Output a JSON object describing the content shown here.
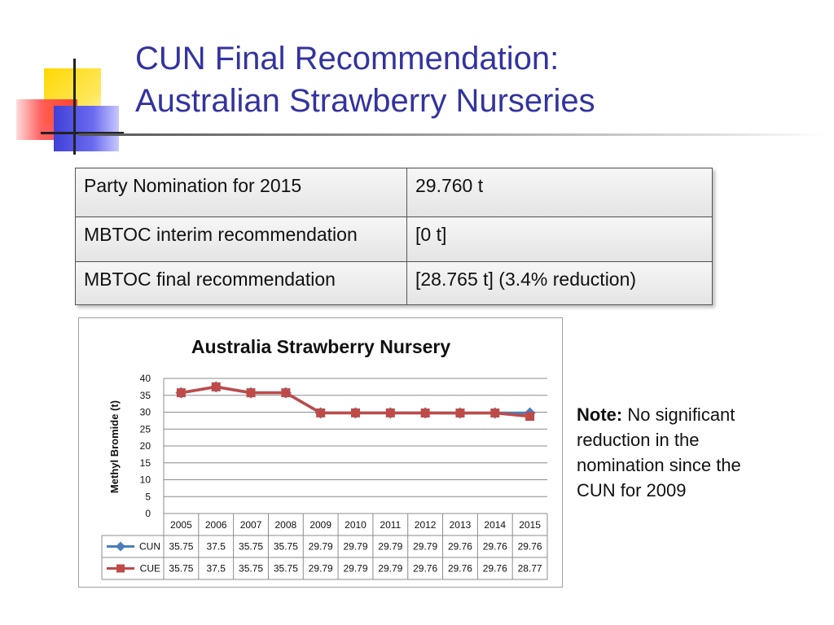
{
  "slide": {
    "title_line1": "CUN Final Recommendation:",
    "title_line2": "Australian Strawberry Nurseries"
  },
  "table": {
    "rows": [
      {
        "label": "Party Nomination for 2015",
        "value": "29.760 t"
      },
      {
        "label": "MBTOC interim recommendation",
        "value": "[0 t]"
      },
      {
        "label": "MBTOC final recommendation",
        "value": "[28.765 t] (3.4% reduction)"
      }
    ]
  },
  "note": {
    "bold": "Note:",
    "text": " No significant reduction in the nomination since the CUN for 2009"
  },
  "chart_data": {
    "type": "line",
    "title": "Australia Strawberry Nursery",
    "ylabel": "Methyl Bromide (t)",
    "xlabel": "",
    "ylim": [
      0,
      40
    ],
    "yticks": [
      0,
      5,
      10,
      15,
      20,
      25,
      30,
      35,
      40
    ],
    "grid": true,
    "legend": "data-table",
    "categories": [
      "2005",
      "2006",
      "2007",
      "2008",
      "2009",
      "2010",
      "2011",
      "2012",
      "2013",
      "2014",
      "2015"
    ],
    "series": [
      {
        "name": "CUN",
        "color": "#4a7ebb",
        "marker": "diamond",
        "values": [
          35.75,
          37.5,
          35.75,
          35.75,
          29.79,
          29.79,
          29.79,
          29.79,
          29.76,
          29.76,
          29.76
        ]
      },
      {
        "name": "CUE",
        "color": "#be4b48",
        "marker": "square",
        "values": [
          35.75,
          37.5,
          35.75,
          35.75,
          29.79,
          29.79,
          29.79,
          29.76,
          29.76,
          29.76,
          28.77
        ]
      }
    ]
  }
}
